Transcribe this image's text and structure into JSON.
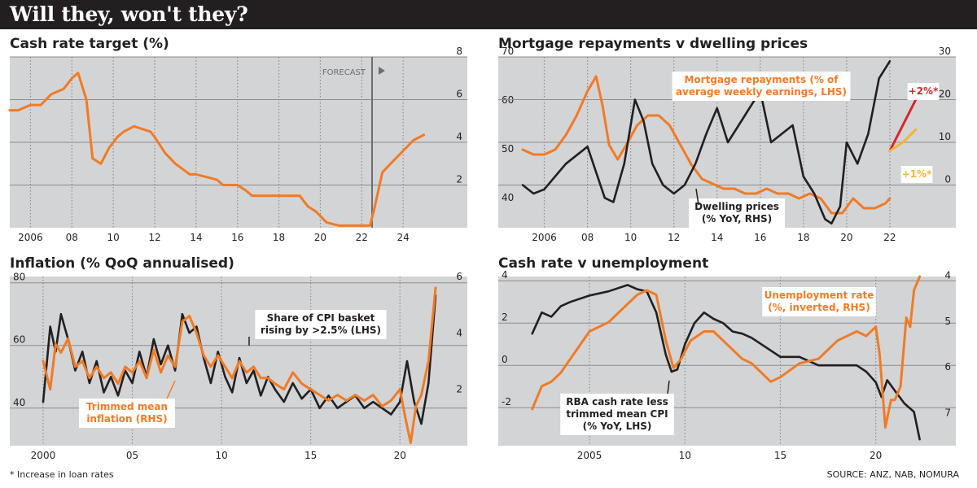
{
  "title": "Will they, won't they?",
  "footnote": "* Increase in loan rates",
  "source": "SOURCE: ANZ, NAB, NOMURA",
  "colors": {
    "orange": "#f07b26",
    "black": "#231f20",
    "red": "#d7262c",
    "yellow": "#f5b531",
    "panel_bg": "#d3d4d6",
    "grid": "#8c8d90"
  },
  "chart_data": [
    {
      "id": "cash_rate",
      "title": "Cash rate target (%)",
      "type": "line",
      "xlim": [
        2005,
        2026
      ],
      "xticks": [
        "2006",
        "08",
        "10",
        "12",
        "14",
        "16",
        "18",
        "20",
        "22",
        "24"
      ],
      "ylim": [
        0,
        8
      ],
      "yticks": [
        "2",
        "4",
        "6",
        "8"
      ],
      "y_axis_side": "right",
      "forecast_label": "FORECAST",
      "forecast_start": 2022.5,
      "series": [
        {
          "color": "orange",
          "x": [
            2005,
            2005.4,
            2006.0,
            2006.5,
            2007.0,
            2007.6,
            2008.0,
            2008.3,
            2008.7,
            2009.0,
            2009.4,
            2009.8,
            2010.2,
            2010.5,
            2011.0,
            2011.8,
            2012.0,
            2012.5,
            2013.0,
            2013.7,
            2014.0,
            2015.0,
            2015.3,
            2016.0,
            2016.4,
            2016.7,
            2017.0,
            2019.0,
            2019.4,
            2019.8,
            2020.3,
            2020.9,
            2021.5,
            2022.4,
            2022.6,
            2023.0,
            2023.5,
            2024.0,
            2024.5,
            2025.0
          ],
          "y": [
            5.5,
            5.5,
            5.75,
            5.75,
            6.25,
            6.5,
            7.0,
            7.25,
            6.0,
            3.25,
            3.0,
            3.75,
            4.25,
            4.5,
            4.75,
            4.5,
            4.25,
            3.5,
            3.0,
            2.5,
            2.5,
            2.25,
            2.0,
            2.0,
            1.75,
            1.5,
            1.5,
            1.5,
            1.0,
            0.75,
            0.25,
            0.1,
            0.1,
            0.1,
            0.85,
            2.6,
            3.1,
            3.6,
            4.1,
            4.35
          ]
        }
      ]
    },
    {
      "id": "mortgage",
      "title": "Mortgage repayments v dwelling prices",
      "type": "line",
      "xlim": [
        2005,
        2024
      ],
      "xticks": [
        "2006",
        "08",
        "10",
        "12",
        "14",
        "16",
        "18",
        "20",
        "22"
      ],
      "left_axis": {
        "ylim": [
          35,
          70
        ],
        "yticks": [
          "40",
          "50",
          "60",
          "70"
        ]
      },
      "right_axis": {
        "ylim": [
          -10,
          30
        ],
        "yticks": [
          "0",
          "10",
          "20",
          "30"
        ]
      },
      "series": [
        {
          "name": "Mortgage repayments (% of average weekly earnings, LHS)",
          "color": "orange",
          "axis": "left",
          "x": [
            2005,
            2005.5,
            2006.0,
            2006.5,
            2007.0,
            2007.5,
            2008.0,
            2008.4,
            2008.7,
            2009.0,
            2009.4,
            2009.8,
            2010.3,
            2010.8,
            2011.3,
            2011.8,
            2012.3,
            2012.8,
            2013.3,
            2013.8,
            2014.3,
            2014.8,
            2015.3,
            2015.8,
            2016.3,
            2016.8,
            2017.3,
            2017.8,
            2018.3,
            2018.8,
            2019.3,
            2019.8,
            2020.3,
            2020.8,
            2021.3,
            2021.8,
            2022.0
          ],
          "y": [
            51,
            50,
            50,
            51,
            54,
            58,
            63,
            66,
            60,
            52,
            49,
            52,
            56,
            58,
            58,
            56,
            52,
            48,
            45,
            44,
            43,
            43,
            42,
            42,
            43,
            42,
            42,
            41,
            42,
            41,
            38,
            38,
            41,
            39,
            39,
            40,
            41
          ]
        },
        {
          "name": "Dwelling prices (% YoY, RHS)",
          "color": "black",
          "axis": "right",
          "x": [
            2005,
            2005.5,
            2006.0,
            2006.5,
            2007.0,
            2007.5,
            2008.0,
            2008.4,
            2008.8,
            2009.2,
            2009.7,
            2010.2,
            2010.6,
            2011.0,
            2011.5,
            2012.0,
            2012.5,
            2013.0,
            2013.5,
            2014.0,
            2014.5,
            2015.0,
            2015.5,
            2016.0,
            2016.5,
            2017.0,
            2017.5,
            2018.0,
            2018.5,
            2019.0,
            2019.3,
            2019.7,
            2020.0,
            2020.5,
            2021.0,
            2021.5,
            2022.0
          ],
          "y": [
            0,
            -2,
            -1,
            2,
            5,
            7,
            9,
            3,
            -3,
            -4,
            5,
            20,
            15,
            5,
            0,
            -2,
            0,
            5,
            12,
            18,
            10,
            14,
            18,
            22,
            10,
            12,
            14,
            2,
            -2,
            -8,
            -9,
            -5,
            10,
            5,
            12,
            25,
            29
          ]
        },
        {
          "name": "+2%*",
          "color": "red",
          "axis": "right",
          "x": [
            2022.0,
            2022.6,
            2023.2
          ],
          "y": [
            8,
            14,
            20
          ]
        },
        {
          "name": "+1%*",
          "color": "yellow",
          "axis": "right",
          "x": [
            2022.0,
            2022.6,
            2023.2
          ],
          "y": [
            8,
            10,
            13
          ]
        }
      ]
    },
    {
      "id": "inflation",
      "title": "Inflation (% QoQ annualised)",
      "type": "line",
      "xlim": [
        1999.5,
        2022.5
      ],
      "xticks": [
        "2000",
        "05",
        "10",
        "15",
        "20"
      ],
      "left_axis": {
        "ylim": [
          28,
          82
        ],
        "yticks": [
          "40",
          "60",
          "80"
        ]
      },
      "right_axis": {
        "ylim": [
          0.2,
          6.2
        ],
        "yticks": [
          "2",
          "4",
          "6"
        ]
      },
      "series": [
        {
          "name": "Share of CPI basket rising by >2.5% (LHS)",
          "color": "black",
          "axis": "left",
          "x": [
            2000.0,
            2000.4,
            2000.7,
            2001.0,
            2001.4,
            2001.8,
            2002.2,
            2002.6,
            2003.0,
            2003.4,
            2003.8,
            2004.2,
            2004.6,
            2005.0,
            2005.4,
            2005.8,
            2006.2,
            2006.6,
            2007.0,
            2007.4,
            2007.8,
            2008.2,
            2008.6,
            2009.0,
            2009.4,
            2009.8,
            2010.2,
            2010.6,
            2011.0,
            2011.4,
            2011.8,
            2012.2,
            2012.6,
            2013.0,
            2013.5,
            2014.0,
            2014.5,
            2015.0,
            2015.5,
            2016.0,
            2016.5,
            2017.0,
            2017.5,
            2018.0,
            2018.5,
            2019.0,
            2019.5,
            2020.0,
            2020.4,
            2020.8,
            2021.2,
            2021.6,
            2022.0
          ],
          "y": [
            42,
            66,
            58,
            70,
            62,
            52,
            58,
            48,
            55,
            45,
            50,
            44,
            52,
            48,
            58,
            50,
            62,
            54,
            60,
            52,
            70,
            64,
            66,
            56,
            48,
            58,
            50,
            45,
            56,
            48,
            52,
            44,
            50,
            46,
            42,
            48,
            43,
            46,
            40,
            44,
            40,
            42,
            44,
            40,
            42,
            40,
            38,
            42,
            55,
            42,
            35,
            48,
            76
          ]
        },
        {
          "name": "Trimmed mean inflation (RHS)",
          "color": "orange",
          "axis": "right",
          "x": [
            2000.0,
            2000.4,
            2000.7,
            2001.0,
            2001.4,
            2001.8,
            2002.2,
            2002.6,
            2003.0,
            2003.4,
            2003.8,
            2004.2,
            2004.6,
            2005.0,
            2005.4,
            2005.8,
            2006.2,
            2006.6,
            2007.0,
            2007.4,
            2007.8,
            2008.2,
            2008.6,
            2009.0,
            2009.4,
            2009.8,
            2010.2,
            2010.6,
            2011.0,
            2011.4,
            2011.8,
            2012.2,
            2012.6,
            2013.0,
            2013.5,
            2014.0,
            2014.5,
            2015.0,
            2015.5,
            2016.0,
            2016.5,
            2017.0,
            2017.5,
            2018.0,
            2018.5,
            2019.0,
            2019.5,
            2020.0,
            2020.3,
            2020.6,
            2020.9,
            2021.2,
            2021.6,
            2022.0
          ],
          "y": [
            3.2,
            2.2,
            3.8,
            3.5,
            4.0,
            3.0,
            3.2,
            2.6,
            3.0,
            2.6,
            2.8,
            2.4,
            3.0,
            2.8,
            3.2,
            2.6,
            3.6,
            2.8,
            3.4,
            3.0,
            4.6,
            4.8,
            4.2,
            3.4,
            3.0,
            3.4,
            3.0,
            2.6,
            3.2,
            2.8,
            3.0,
            2.6,
            2.6,
            2.4,
            2.2,
            2.8,
            2.4,
            2.2,
            2.0,
            1.8,
            2.0,
            1.8,
            2.0,
            1.8,
            2.0,
            1.6,
            1.8,
            2.2,
            1.2,
            0.3,
            1.6,
            2.0,
            3.2,
            5.8
          ]
        }
      ]
    },
    {
      "id": "cash_unemp",
      "title": "Cash rate v unemployment",
      "type": "line",
      "xlim": [
        2001.5,
        2023.0
      ],
      "xticks": [
        "2005",
        "10",
        "15",
        "20"
      ],
      "left_axis": {
        "ylim": [
          -3.8,
          4.2
        ],
        "yticks": [
          "-2",
          "0",
          "2",
          "4"
        ]
      },
      "right_axis": {
        "ylim": [
          7.6,
          3.9
        ],
        "yticks": [
          "4",
          "5",
          "6",
          "7"
        ],
        "inverted": true
      },
      "series": [
        {
          "name": "RBA cash rate less trimmed mean CPI (% YoY, LHS)",
          "color": "black",
          "axis": "left",
          "x": [
            2002.0,
            2002.5,
            2003.0,
            2003.5,
            2004.0,
            2005.0,
            2006.0,
            2007.0,
            2007.5,
            2008.0,
            2008.5,
            2009.0,
            2009.3,
            2009.6,
            2010.0,
            2010.5,
            2011.0,
            2011.5,
            2012.0,
            2012.5,
            2013.0,
            2013.5,
            2014.0,
            2015.0,
            2016.0,
            2017.0,
            2018.0,
            2019.0,
            2019.5,
            2020.0,
            2020.3,
            2020.6,
            2021.0,
            2021.5,
            2022.0,
            2022.3
          ],
          "y": [
            1.5,
            2.5,
            2.3,
            2.8,
            3.0,
            3.3,
            3.5,
            3.8,
            3.6,
            3.5,
            2.5,
            0.5,
            -0.3,
            -0.2,
            1.0,
            2.0,
            2.5,
            2.2,
            2.0,
            1.6,
            1.5,
            1.3,
            1.0,
            0.4,
            0.4,
            0.0,
            0.0,
            0.0,
            -0.3,
            -0.8,
            -1.5,
            -0.7,
            -1.2,
            -1.8,
            -2.2,
            -3.5
          ]
        },
        {
          "name": "Unemployment rate (%, inverted, RHS)",
          "color": "orange",
          "axis": "right",
          "x": [
            2002.0,
            2002.5,
            2003.0,
            2003.5,
            2004.0,
            2004.5,
            2005.0,
            2006.0,
            2007.0,
            2007.5,
            2008.0,
            2008.5,
            2009.0,
            2009.4,
            2009.8,
            2010.3,
            2011.0,
            2011.5,
            2012.0,
            2013.0,
            2013.5,
            2014.0,
            2014.5,
            2015.0,
            2016.0,
            2017.0,
            2018.0,
            2018.5,
            2019.0,
            2019.5,
            2020.0,
            2020.2,
            2020.5,
            2020.8,
            2021.0,
            2021.3,
            2021.6,
            2021.8,
            2022.0,
            2022.3
          ],
          "y": [
            6.8,
            6.3,
            6.2,
            6.0,
            5.7,
            5.4,
            5.1,
            4.9,
            4.5,
            4.3,
            4.2,
            4.3,
            5.3,
            5.9,
            5.7,
            5.3,
            5.1,
            5.1,
            5.3,
            5.7,
            5.8,
            6.0,
            6.2,
            6.1,
            5.8,
            5.7,
            5.3,
            5.2,
            5.1,
            5.2,
            5.0,
            5.6,
            7.2,
            6.6,
            6.6,
            6.3,
            4.8,
            5.0,
            4.2,
            3.9
          ]
        }
      ]
    }
  ],
  "annotations": {
    "mortgage_label_1": "Mortgage repayments (% of",
    "mortgage_label_2": "average weekly earnings, LHS)",
    "dwelling_label_1": "Dwelling prices",
    "dwelling_label_2": "(% YoY, RHS)",
    "plus2": "+2%*",
    "plus1": "+1%*",
    "cpi_share_1": "Share of CPI basket",
    "cpi_share_2": "rising by >2.5% (LHS)",
    "trimmed_1": "Trimmed mean",
    "trimmed_2": "inflation (RHS)",
    "unemp_1": "Unemployment rate",
    "unemp_2": "(%, inverted, RHS)",
    "rba_1": "RBA cash rate less",
    "rba_2": "trimmed mean CPI",
    "rba_3": "(% YoY, LHS)"
  }
}
